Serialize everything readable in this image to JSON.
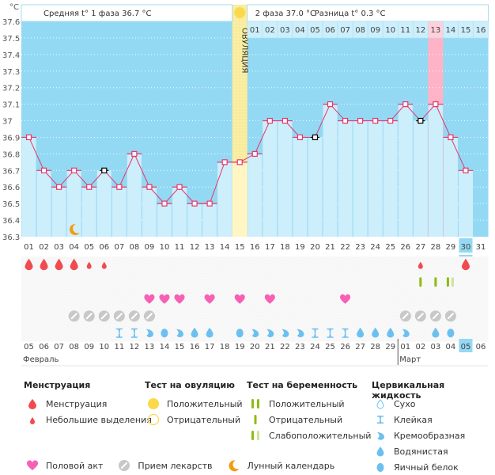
{
  "header": {
    "unit_label": "°C",
    "phase1_label": "Средняя t° 1 фаза 36.7 °C",
    "phase2_label": "2 фаза 37.0 °C",
    "difference_label": "Разница t° 0.3 °C",
    "ovulation_label": "ОВУЛЯЦИЯ"
  },
  "colors": {
    "chart_bg": "#93d9f3",
    "bar_fill": "#cdeefb",
    "ovulation_band": "#f8ec9c",
    "line": "#e8356b",
    "highlight_day": "#ffb3c6",
    "menstruation": "#f24b4f",
    "sex": "#f660b5",
    "meds": "#c8c8c8",
    "pregnancy_test": "#8dbb12",
    "pregnancy_test_weak": "#cde39a",
    "cervical": "#6cc0ef",
    "moon": "#f39c12",
    "weekend_date": "#e8356b"
  },
  "chart_data": {
    "type": "line",
    "title": "",
    "ylabel": "°C",
    "ylim": [
      36.3,
      37.6
    ],
    "yticks": [
      "36.3",
      "36.4",
      "36.5",
      "36.6",
      "36.7",
      "36.8",
      "36.9",
      "37",
      "37.1",
      "37.2",
      "37.3",
      "37.4",
      "37.5",
      "37.6"
    ],
    "cycle_days": [
      "01",
      "02",
      "03",
      "04",
      "05",
      "06",
      "07",
      "08",
      "09",
      "10",
      "11",
      "12",
      "13",
      "14",
      "15",
      "16",
      "17",
      "18",
      "19",
      "20",
      "21",
      "22",
      "23",
      "24",
      "25",
      "26",
      "27",
      "28",
      "29",
      "30",
      "31"
    ],
    "current_cycle_day": "30",
    "luteal_day_labels": [
      "01",
      "02",
      "03",
      "04",
      "05",
      "06",
      "07",
      "08",
      "09",
      "10",
      "11",
      "12",
      "13",
      "14",
      "15",
      "16"
    ],
    "luteal_start_day": 16,
    "highlight_luteal_day": "13",
    "ovulation_day": 15,
    "temperatures": [
      36.9,
      36.7,
      36.6,
      36.7,
      36.6,
      36.7,
      36.6,
      36.8,
      36.6,
      36.5,
      36.6,
      36.5,
      36.5,
      36.75,
      36.75,
      36.8,
      37.0,
      37.0,
      36.9,
      36.9,
      37.1,
      37.0,
      37.0,
      37.0,
      37.0,
      37.1,
      37.0,
      37.1,
      36.9,
      36.7,
      null
    ],
    "excluded_points": [
      6,
      20,
      27
    ],
    "moon_day": 4,
    "dates": [
      "05",
      "06",
      "07",
      "08",
      "09",
      "10",
      "11",
      "12",
      "13",
      "14",
      "15",
      "16",
      "17",
      "18",
      "19",
      "20",
      "21",
      "22",
      "23",
      "24",
      "25",
      "26",
      "27",
      "28",
      "29",
      "01",
      "02",
      "03",
      "04",
      "05",
      "06"
    ],
    "weekend_dates_idx": [
      2,
      3,
      9,
      10,
      16,
      17,
      23,
      24,
      31
    ],
    "today_date_idx": 30,
    "months": [
      {
        "label": "Февраль",
        "start": 1
      },
      {
        "label": "Март",
        "start": 26
      }
    ],
    "menstruation": [
      {
        "day": 1,
        "type": "heavy"
      },
      {
        "day": 2,
        "type": "heavy"
      },
      {
        "day": 3,
        "type": "heavy"
      },
      {
        "day": 4,
        "type": "heavy"
      },
      {
        "day": 5,
        "type": "light"
      },
      {
        "day": 6,
        "type": "light"
      },
      {
        "day": 27,
        "type": "light"
      },
      {
        "day": 30,
        "type": "heavy"
      }
    ],
    "pregnancy_tests": [
      {
        "day": 27,
        "type": "negative"
      },
      {
        "day": 28,
        "type": "negative"
      },
      {
        "day": 29,
        "type": "weak"
      }
    ],
    "sex_days": [
      9,
      10,
      11,
      13,
      15,
      17,
      22
    ],
    "medication_days": [
      4,
      5,
      6,
      7,
      8,
      9,
      26,
      27,
      28,
      29
    ],
    "cervical_fluid": [
      {
        "day": 7,
        "type": "sticky"
      },
      {
        "day": 8,
        "type": "sticky"
      },
      {
        "day": 9,
        "type": "creamy"
      },
      {
        "day": 10,
        "type": "eggwhite"
      },
      {
        "day": 11,
        "type": "creamy"
      },
      {
        "day": 12,
        "type": "watery"
      },
      {
        "day": 13,
        "type": "watery"
      },
      {
        "day": 15,
        "type": "eggwhite"
      },
      {
        "day": 16,
        "type": "creamy"
      },
      {
        "day": 17,
        "type": "creamy"
      },
      {
        "day": 18,
        "type": "creamy"
      },
      {
        "day": 19,
        "type": "creamy"
      },
      {
        "day": 20,
        "type": "sticky"
      },
      {
        "day": 21,
        "type": "sticky"
      },
      {
        "day": 22,
        "type": "sticky"
      },
      {
        "day": 23,
        "type": "watery"
      },
      {
        "day": 24,
        "type": "watery"
      },
      {
        "day": 25,
        "type": "watery"
      },
      {
        "day": 26,
        "type": "creamy"
      },
      {
        "day": 28,
        "type": "watery"
      },
      {
        "day": 29,
        "type": "eggwhite"
      }
    ]
  },
  "legend": {
    "menstruation": {
      "title": "Менструация",
      "items": [
        "Менструация",
        "Небольшие выделения"
      ]
    },
    "ovulation_test": {
      "title": "Тест на овуляцию",
      "items": [
        "Положительный",
        "Отрицательный"
      ]
    },
    "pregnancy_test": {
      "title": "Тест на беременность",
      "items": [
        "Положительный",
        "Отрицательный",
        "Слабоположительный"
      ]
    },
    "cervical_fluid": {
      "title": "Цервикальная жидкость",
      "items": [
        "Сухо",
        "Клейкая",
        "Кремообразная",
        "Водянистая",
        "Яичный белок"
      ]
    },
    "other": [
      "Половой акт",
      "Прием лекарств",
      "Лунный календарь"
    ]
  }
}
